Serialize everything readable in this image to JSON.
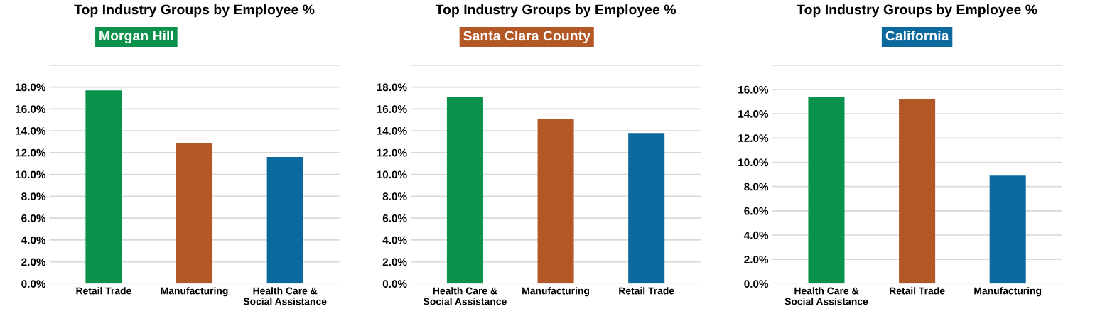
{
  "chart_data": [
    {
      "type": "bar",
      "title": "Top Industry Groups by Employee %",
      "subtitle": "Morgan Hill",
      "categories": [
        "Retail Trade",
        "Manufacturing",
        "Health Care &\nSocial Assistance"
      ],
      "values": [
        17.7,
        12.9,
        11.6
      ],
      "colors": [
        "#0a914b",
        "#b35727",
        "#0b699d"
      ],
      "ylim": [
        0,
        20
      ],
      "yticks": [
        {
          "value": 0,
          "label": "0.0%"
        },
        {
          "value": 2,
          "label": "2.0%"
        },
        {
          "value": 4,
          "label": "4.0%"
        },
        {
          "value": 6,
          "label": "6.0%"
        },
        {
          "value": 8,
          "label": "8.0%"
        },
        {
          "value": 10,
          "label": "10.0%"
        },
        {
          "value": 12,
          "label": "12.0%"
        },
        {
          "value": 14,
          "label": "14.0%"
        },
        {
          "value": 16,
          "label": "16.0%"
        },
        {
          "value": 18,
          "label": "18.0%"
        },
        {
          "value": 20,
          "label": null
        }
      ],
      "grid": "y"
    },
    {
      "type": "bar",
      "title": "Top Industry Groups by Employee %",
      "subtitle": "Santa Clara County",
      "categories": [
        "Health Care &\nSocial Assistance",
        "Manufacturing",
        "Retail Trade"
      ],
      "values": [
        17.1,
        15.1,
        13.8
      ],
      "colors": [
        "#0a914b",
        "#b35727",
        "#0b699d"
      ],
      "ylim": [
        0,
        20
      ],
      "yticks": [
        {
          "value": 0,
          "label": "0.0%"
        },
        {
          "value": 2,
          "label": "2.0%"
        },
        {
          "value": 4,
          "label": "4.0%"
        },
        {
          "value": 6,
          "label": "6.0%"
        },
        {
          "value": 8,
          "label": "8.0%"
        },
        {
          "value": 10,
          "label": "10.0%"
        },
        {
          "value": 12,
          "label": "12.0%"
        },
        {
          "value": 14,
          "label": "14.0%"
        },
        {
          "value": 16,
          "label": "16.0%"
        },
        {
          "value": 18,
          "label": "18.0%"
        },
        {
          "value": 20,
          "label": null
        }
      ],
      "grid": "y"
    },
    {
      "type": "bar",
      "title": "Top Industry Groups by Employee %",
      "subtitle": "California",
      "categories": [
        "Health Care &\nSocial Assistance",
        "Retail Trade",
        "Manufacturing"
      ],
      "values": [
        15.4,
        15.2,
        8.9
      ],
      "colors": [
        "#0a914b",
        "#b35727",
        "#0b699d"
      ],
      "ylim": [
        0,
        18
      ],
      "yticks": [
        {
          "value": 0,
          "label": "0.0%"
        },
        {
          "value": 2,
          "label": "2.0%"
        },
        {
          "value": 4,
          "label": "4.0%"
        },
        {
          "value": 6,
          "label": "6.0%"
        },
        {
          "value": 8,
          "label": "8.0%"
        },
        {
          "value": 10,
          "label": "10.0%"
        },
        {
          "value": 12,
          "label": "12.0%"
        },
        {
          "value": 14,
          "label": "14.0%"
        },
        {
          "value": 16,
          "label": "16.0%"
        },
        {
          "value": 18,
          "label": null
        }
      ],
      "grid": "y"
    }
  ]
}
